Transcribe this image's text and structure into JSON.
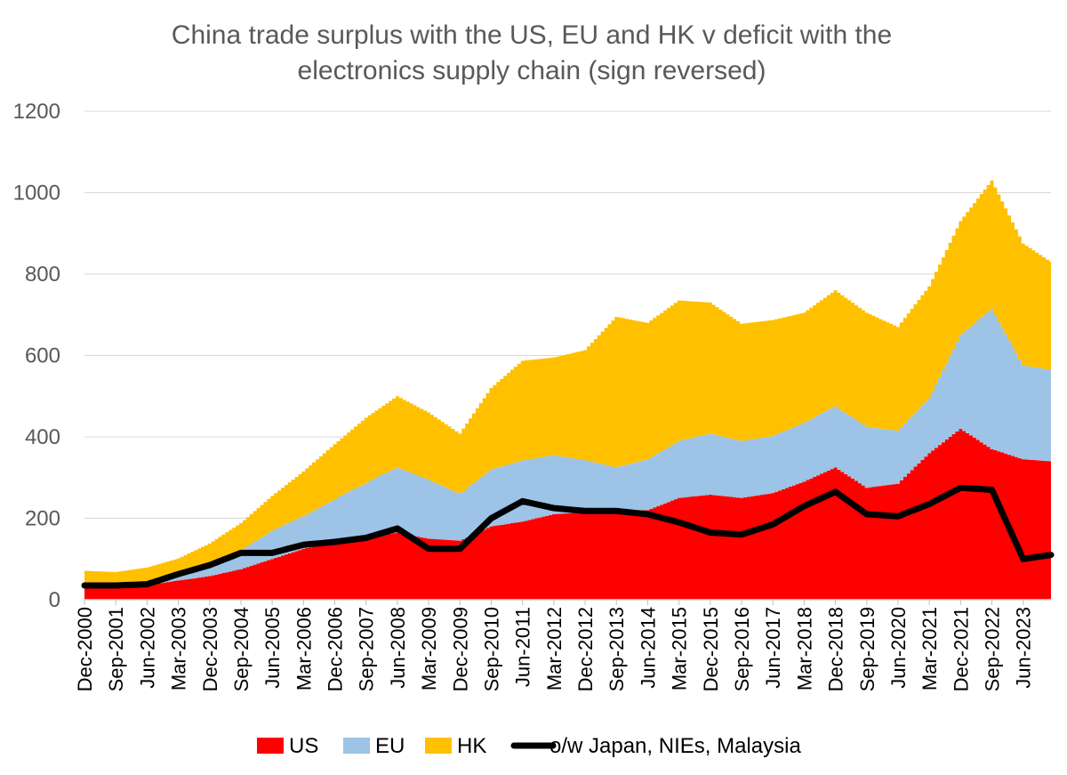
{
  "chart_data": {
    "type": "area",
    "stacked": true,
    "title_lines": [
      "China trade surplus with the US, EU and HK v deficit with the",
      "electronics supply chain (sign reversed)"
    ],
    "ylim": [
      0,
      1200
    ],
    "yticks": [
      "0",
      "200",
      "400",
      "600",
      "800",
      "1000",
      "1200"
    ],
    "grid": "horizontal",
    "x_tick_labels": [
      "Dec-2000",
      "Sep-2001",
      "Jun-2002",
      "Mar-2003",
      "Dec-2003",
      "Sep-2004",
      "Jun-2005",
      "Mar-2006",
      "Dec-2006",
      "Sep-2007",
      "Jun-2008",
      "Mar-2009",
      "Dec-2009",
      "Sep-2010",
      "Jun-2011",
      "Mar-2012",
      "Dec-2012",
      "Sep-2013",
      "Jun-2014",
      "Mar-2015",
      "Dec-2015",
      "Sep-2016",
      "Jun-2017",
      "Mar-2018",
      "Dec-2018",
      "Sep-2019",
      "Jun-2020",
      "Mar-2021",
      "Dec-2021",
      "Sep-2022",
      "Jun-2023"
    ],
    "x_label_step_months": 9,
    "x_range_months": [
      0,
      278
    ],
    "x": [
      0,
      9,
      18,
      27,
      36,
      45,
      54,
      63,
      72,
      81,
      90,
      99,
      108,
      117,
      126,
      135,
      144,
      153,
      162,
      171,
      180,
      189,
      198,
      207,
      216,
      225,
      234,
      243,
      252,
      261,
      270,
      278
    ],
    "legend_position": "bottom",
    "series": [
      {
        "name": "US",
        "kind": "area",
        "color": "#ff0000",
        "values": [
          28,
          30,
          36,
          47,
          58,
          75,
          100,
          125,
          142,
          152,
          165,
          150,
          145,
          180,
          192,
          210,
          215,
          220,
          220,
          250,
          258,
          250,
          262,
          290,
          325,
          275,
          285,
          360,
          420,
          370,
          345,
          340
        ]
      },
      {
        "name": "EU",
        "kind": "area",
        "color": "#9dc3e6",
        "values": [
          3,
          3,
          5,
          12,
          25,
          45,
          70,
          80,
          105,
          135,
          160,
          145,
          115,
          140,
          150,
          145,
          128,
          105,
          125,
          140,
          150,
          140,
          140,
          145,
          150,
          150,
          130,
          135,
          230,
          345,
          230,
          225
        ]
      },
      {
        "name": "HK",
        "kind": "area",
        "color": "#ffc000",
        "values": [
          40,
          35,
          38,
          42,
          55,
          68,
          85,
          110,
          135,
          160,
          175,
          165,
          148,
          200,
          245,
          240,
          270,
          370,
          335,
          345,
          322,
          288,
          285,
          270,
          285,
          280,
          255,
          275,
          280,
          315,
          300,
          265
        ]
      },
      {
        "name": "o/w Japan, NIEs, Malaysia",
        "kind": "line",
        "color": "#000000",
        "values": [
          35,
          35,
          38,
          63,
          85,
          115,
          115,
          135,
          142,
          152,
          175,
          125,
          125,
          200,
          242,
          225,
          218,
          218,
          210,
          190,
          165,
          160,
          185,
          230,
          265,
          210,
          205,
          235,
          275,
          270,
          100,
          110
        ]
      }
    ]
  }
}
